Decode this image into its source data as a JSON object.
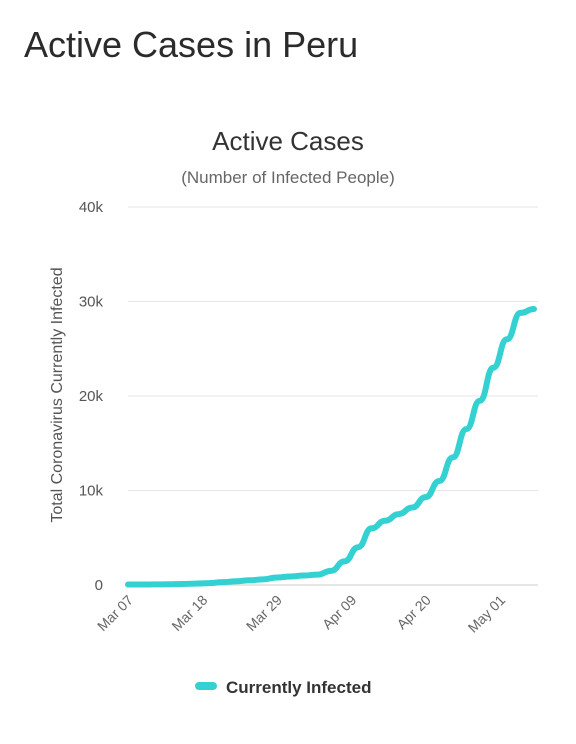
{
  "page": {
    "title": "Active Cases in Peru"
  },
  "chart_data": {
    "type": "line",
    "title": "Active Cases",
    "subtitle": "(Number of Infected People)",
    "xlabel": "",
    "ylabel": "Total Coronavirus Currently Infected",
    "ylim": [
      0,
      40000
    ],
    "y_ticks": [
      0,
      10000,
      20000,
      30000,
      40000
    ],
    "y_tick_labels": [
      "0",
      "10k",
      "20k",
      "30k",
      "40k"
    ],
    "x_tick_labels": [
      "Mar 07",
      "Mar 18",
      "Mar 29",
      "Apr 09",
      "Apr 20",
      "May 01"
    ],
    "grid": true,
    "legend_position": "bottom",
    "colors": {
      "series": "#33d1d1",
      "grid": "#e6e6e6",
      "axis": "#cccccc"
    },
    "series": [
      {
        "name": "Currently Infected",
        "x": [
          "Mar 07",
          "Mar 09",
          "Mar 11",
          "Mar 13",
          "Mar 15",
          "Mar 17",
          "Mar 19",
          "Mar 21",
          "Mar 23",
          "Mar 25",
          "Mar 27",
          "Mar 29",
          "Mar 31",
          "Apr 02",
          "Apr 04",
          "Apr 06",
          "Apr 08",
          "Apr 10",
          "Apr 12",
          "Apr 14",
          "Apr 16",
          "Apr 18",
          "Apr 20",
          "Apr 22",
          "Apr 24",
          "Apr 26",
          "Apr 28",
          "Apr 30",
          "May 02",
          "May 04",
          "May 06"
        ],
        "values": [
          50,
          50,
          60,
          80,
          100,
          150,
          200,
          300,
          400,
          500,
          600,
          800,
          900,
          1000,
          1100,
          1500,
          2500,
          4000,
          6000,
          6800,
          7500,
          8200,
          9300,
          11000,
          13500,
          16500,
          19500,
          23000,
          26000,
          28800,
          29200
        ]
      }
    ]
  }
}
